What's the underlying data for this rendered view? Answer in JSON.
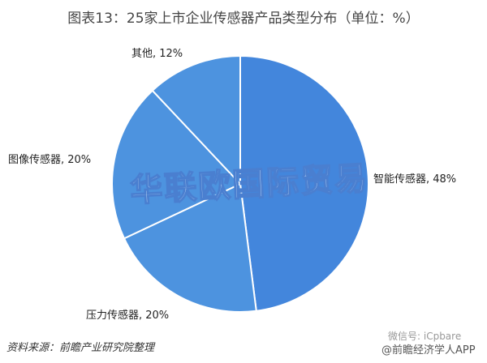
{
  "chart_data": {
    "type": "pie",
    "title": "图表13：25家上市企业传感器产品类型分布（单位：%）",
    "slices": [
      {
        "label": "智能传感器, 48%",
        "value": 48,
        "color": "#4386dc"
      },
      {
        "label": "压力传感器, 20%",
        "value": 20,
        "color": "#4d93df"
      },
      {
        "label": "图像传感器, 20%",
        "value": 20,
        "color": "#4d93df"
      },
      {
        "label": "其他, 12%",
        "value": 12,
        "color": "#4d93df"
      }
    ],
    "start": "top, clockwise"
  },
  "source": "资料来源：前瞻产业研究院整理",
  "watermarks": {
    "main": "华联欧国际贸易",
    "wechat": "微信号: iCpbare",
    "app": "@前瞻经济学人APP"
  }
}
